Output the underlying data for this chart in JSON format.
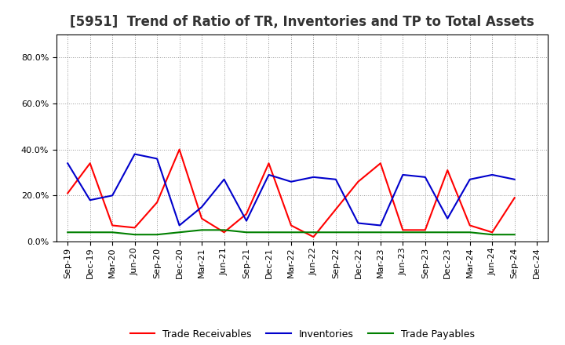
{
  "title": "[5951]  Trend of Ratio of TR, Inventories and TP to Total Assets",
  "ylim": [
    0.0,
    0.9
  ],
  "yticks": [
    0.0,
    0.2,
    0.4,
    0.6,
    0.8
  ],
  "x_labels": [
    "Sep-19",
    "Dec-19",
    "Mar-20",
    "Jun-20",
    "Sep-20",
    "Dec-20",
    "Mar-21",
    "Jun-21",
    "Sep-21",
    "Dec-21",
    "Mar-22",
    "Jun-22",
    "Sep-22",
    "Dec-22",
    "Mar-23",
    "Jun-23",
    "Sep-23",
    "Dec-23",
    "Mar-24",
    "Jun-24",
    "Sep-24",
    "Dec-24"
  ],
  "trade_receivables": [
    0.21,
    0.34,
    0.07,
    0.06,
    0.17,
    0.4,
    0.1,
    0.04,
    0.12,
    0.34,
    0.07,
    0.02,
    0.14,
    0.26,
    0.34,
    0.05,
    0.05,
    0.31,
    0.07,
    0.04,
    0.19,
    null
  ],
  "inventories": [
    0.34,
    0.18,
    0.2,
    0.38,
    0.36,
    0.07,
    0.15,
    0.27,
    0.09,
    0.29,
    0.26,
    0.28,
    0.27,
    0.08,
    0.07,
    0.29,
    0.28,
    0.1,
    0.27,
    0.29,
    0.27,
    null
  ],
  "trade_payables": [
    0.04,
    0.04,
    0.04,
    0.03,
    0.03,
    0.04,
    0.05,
    0.05,
    0.04,
    0.04,
    0.04,
    0.04,
    0.04,
    0.04,
    0.04,
    0.04,
    0.04,
    0.04,
    0.04,
    0.03,
    0.03,
    null
  ],
  "tr_color": "#ff0000",
  "inv_color": "#0000cc",
  "tp_color": "#008000",
  "line_width": 1.5,
  "legend_labels": [
    "Trade Receivables",
    "Inventories",
    "Trade Payables"
  ],
  "background_color": "#ffffff",
  "grid_color": "#999999",
  "title_fontsize": 12,
  "tick_fontsize": 8,
  "legend_fontsize": 9
}
